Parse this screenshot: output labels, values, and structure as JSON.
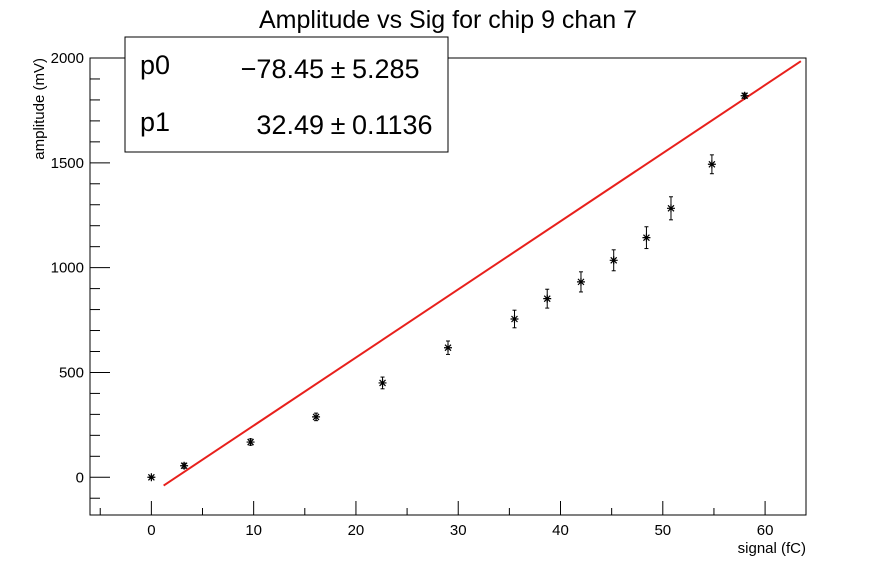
{
  "chart_data": {
    "type": "scatter",
    "title": "Amplitude vs Sig for chip 9 chan 7",
    "xlabel": "signal (fC)",
    "ylabel": "amplitude (mV)",
    "xlim": [
      -6,
      64
    ],
    "ylim": [
      -180,
      2000
    ],
    "x_ticks": [
      0,
      10,
      20,
      30,
      40,
      50,
      60
    ],
    "y_ticks": [
      0,
      500,
      1000,
      1500,
      2000
    ],
    "grid": false,
    "series": [
      {
        "kind": "points_with_errors",
        "marker": "star",
        "color": "#000000",
        "x": [
          0,
          3.2,
          9.7,
          16.1,
          22.6,
          29.0,
          35.5,
          38.7,
          42.0,
          45.2,
          48.4,
          50.8,
          54.8,
          58.0
        ],
        "y": [
          0,
          55,
          168,
          288,
          450,
          618,
          755,
          852,
          932,
          1035,
          1143,
          1283,
          1493,
          1820
        ],
        "yerr": [
          4,
          12,
          15,
          18,
          28,
          32,
          42,
          45,
          48,
          50,
          52,
          55,
          45,
          12
        ]
      },
      {
        "kind": "fit_line",
        "color": "#e8201c",
        "x_range": [
          1.2,
          63.5
        ],
        "p0": -78.45,
        "p1": 32.49
      }
    ],
    "stats_box": {
      "position": "top-left",
      "rows": [
        {
          "name": "p0",
          "value": "−78.45",
          "pm": "±",
          "err": "5.285"
        },
        {
          "name": "p1",
          "value": "32.49",
          "pm": "±",
          "err": "0.1136"
        }
      ]
    }
  }
}
